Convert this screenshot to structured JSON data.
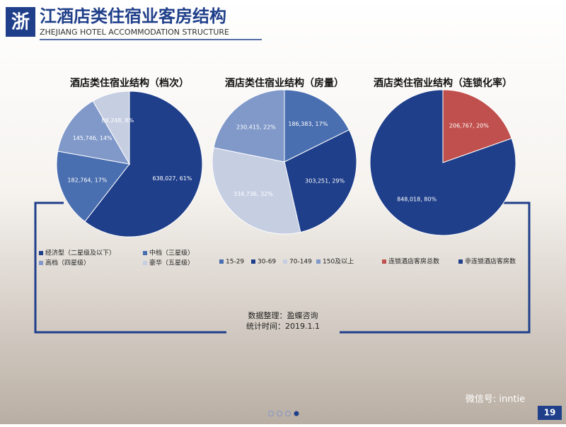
{
  "header": {
    "badge": "浙",
    "title": "江酒店类住宿业客房结构",
    "subtitle": "ZHEJIANG HOTEL ACCOMMODATION STRUCTURE"
  },
  "chart_data": [
    {
      "type": "pie",
      "title": "酒店类住宿业结构（档次）",
      "categories": [
        "经济型（二星级及以下）",
        "中档（三星级）",
        "高档（四星级）",
        "豪华（五星级）"
      ],
      "values": [
        638027,
        182764,
        145746,
        88248
      ],
      "value_labels": [
        "638,027, 61%",
        "182,764, 17%",
        "145,746, 14%",
        "88,248, 8%"
      ],
      "colors": [
        "#1f3f8a",
        "#4a6fb0",
        "#8099c9",
        "#c6cee2"
      ]
    },
    {
      "type": "pie",
      "title": "酒店类住宿业结构（房量）",
      "categories": [
        "15-29",
        "30-69",
        "70-149",
        "150及以上"
      ],
      "values": [
        186383,
        303251,
        334736,
        230415
      ],
      "value_labels": [
        "186,383, 17%",
        "303,251, 29%",
        "334,736, 32%",
        "230,415, 22%"
      ],
      "colors": [
        "#4a6fb0",
        "#1f3f8a",
        "#c6cee2",
        "#8099c9"
      ]
    },
    {
      "type": "pie",
      "title": "酒店类住宿业结构（连锁化率）",
      "categories": [
        "连锁酒店客房总数",
        "非连锁酒店客房数"
      ],
      "values": [
        206767,
        848018
      ],
      "value_labels": [
        "206,767, 20%",
        "848,018, 80%"
      ],
      "colors": [
        "#c0504d",
        "#1f3f8a"
      ]
    }
  ],
  "footer": {
    "source": "数据整理：盈蝶咨询",
    "date": "统计时间：2019.1.1",
    "wechat": "微信号: inntie",
    "page": "19"
  }
}
